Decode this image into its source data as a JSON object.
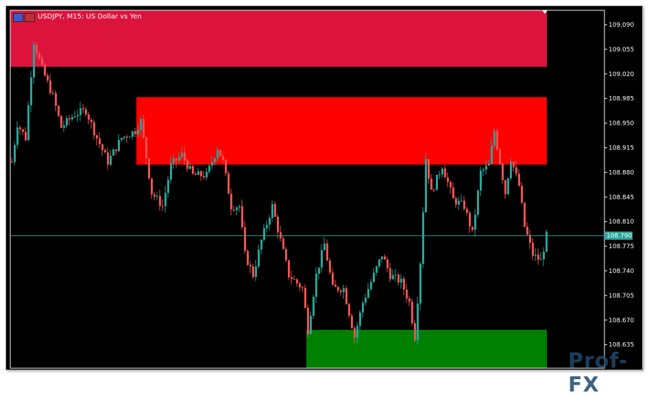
{
  "window": {
    "title": "USDJPY, M15:  US Dollar vs Yen",
    "icons": [
      "chart-window-icon",
      "chart-properties-icon"
    ]
  },
  "watermark": "Prof-FX",
  "chart_data": {
    "type": "candlestick",
    "symbol": "USDJPY",
    "timeframe": "M15",
    "ylim": [
      108.6,
      109.11
    ],
    "y_ticks": [
      "109.090",
      "109.055",
      "109.020",
      "108.985",
      "108.950",
      "108.915",
      "108.880",
      "108.845",
      "108.810",
      "108.775",
      "108.740",
      "108.705",
      "108.670",
      "108.635"
    ],
    "current_price": "108.790",
    "grid": false,
    "colors": {
      "bull": "#26a69a",
      "bear": "#ef5350",
      "background": "#000000",
      "price_line": "#26a69a",
      "zone_top": "#dc143c",
      "zone_mid": "#ff0000",
      "zone_bottom": "#008000"
    },
    "zones": [
      {
        "name": "supply-upper",
        "from_index": 0,
        "to_index": 195,
        "low": 109.03,
        "high": 109.11,
        "color": "#dc143c"
      },
      {
        "name": "supply",
        "from_index": 46,
        "to_index": 195,
        "low": 108.891,
        "high": 108.987,
        "color": "#ff0000"
      },
      {
        "name": "demand",
        "from_index": 108,
        "to_index": 195,
        "low": 108.6,
        "high": 108.656,
        "color": "#008000"
      }
    ],
    "close_path": [
      [
        0,
        108.895
      ],
      [
        2,
        108.949
      ],
      [
        5,
        108.929
      ],
      [
        8,
        109.066
      ],
      [
        11,
        109.027
      ],
      [
        15,
        108.988
      ],
      [
        18,
        108.944
      ],
      [
        23,
        108.963
      ],
      [
        27,
        108.968
      ],
      [
        31,
        108.929
      ],
      [
        35,
        108.895
      ],
      [
        40,
        108.929
      ],
      [
        45,
        108.939
      ],
      [
        47,
        108.953
      ],
      [
        51,
        108.851
      ],
      [
        55,
        108.832
      ],
      [
        58,
        108.89
      ],
      [
        62,
        108.905
      ],
      [
        66,
        108.876
      ],
      [
        71,
        108.876
      ],
      [
        75,
        108.915
      ],
      [
        77,
        108.895
      ],
      [
        80,
        108.832
      ],
      [
        83,
        108.832
      ],
      [
        85,
        108.763
      ],
      [
        88,
        108.734
      ],
      [
        91,
        108.783
      ],
      [
        95,
        108.832
      ],
      [
        98,
        108.783
      ],
      [
        101,
        108.734
      ],
      [
        106,
        108.715
      ],
      [
        108,
        108.656
      ],
      [
        111,
        108.734
      ],
      [
        114,
        108.778
      ],
      [
        117,
        108.715
      ],
      [
        121,
        108.715
      ],
      [
        125,
        108.646
      ],
      [
        128,
        108.695
      ],
      [
        132,
        108.734
      ],
      [
        135,
        108.763
      ],
      [
        138,
        108.734
      ],
      [
        142,
        108.724
      ],
      [
        145,
        108.695
      ],
      [
        147,
        108.646
      ],
      [
        149,
        108.753
      ],
      [
        151,
        108.9
      ],
      [
        153,
        108.851
      ],
      [
        157,
        108.89
      ],
      [
        161,
        108.841
      ],
      [
        165,
        108.832
      ],
      [
        168,
        108.793
      ],
      [
        171,
        108.88
      ],
      [
        174,
        108.89
      ],
      [
        176,
        108.939
      ],
      [
        180,
        108.851
      ],
      [
        182,
        108.9
      ],
      [
        185,
        108.861
      ],
      [
        187,
        108.803
      ],
      [
        190,
        108.763
      ],
      [
        193,
        108.754
      ],
      [
        195,
        108.79
      ]
    ]
  }
}
